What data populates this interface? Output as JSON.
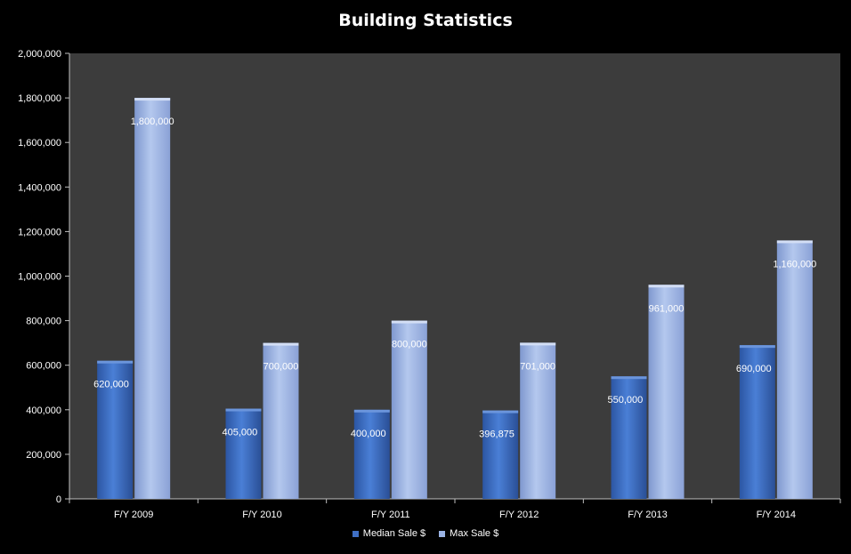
{
  "chart_data": {
    "type": "bar",
    "title": "Building Statistics",
    "categories": [
      "F/Y 2009",
      "F/Y 2010",
      "F/Y 2011",
      "F/Y 2012",
      "F/Y 2013",
      "F/Y 2014"
    ],
    "series": [
      {
        "name": "Median Sale $",
        "values": [
          620000,
          405000,
          400000,
          396875,
          550000,
          690000
        ],
        "labels": [
          "620,000",
          "405,000",
          "400,000",
          "396,875",
          "550,000",
          "690,000"
        ],
        "color": "#3f6fc4"
      },
      {
        "name": "Max Sale $",
        "values": [
          1800000,
          700000,
          800000,
          701000,
          961000,
          1160000
        ],
        "labels": [
          "1,800,000",
          "700,000",
          "800,000",
          "701,000",
          "961,000",
          "1,160,000"
        ],
        "color": "#9bb3e4"
      }
    ],
    "ylim": [
      0,
      2000000
    ],
    "yticks": [
      0,
      200000,
      400000,
      600000,
      800000,
      1000000,
      1200000,
      1400000,
      1600000,
      1800000,
      2000000
    ],
    "ytick_labels": [
      "0",
      "200,000",
      "400,000",
      "600,000",
      "800,000",
      "1,000,000",
      "1,200,000",
      "1,400,000",
      "1,600,000",
      "1,800,000",
      "2,000,000"
    ],
    "grid": false,
    "legend_position": "bottom",
    "plot_background": "#3c3c3c",
    "page_background": "#000000"
  }
}
